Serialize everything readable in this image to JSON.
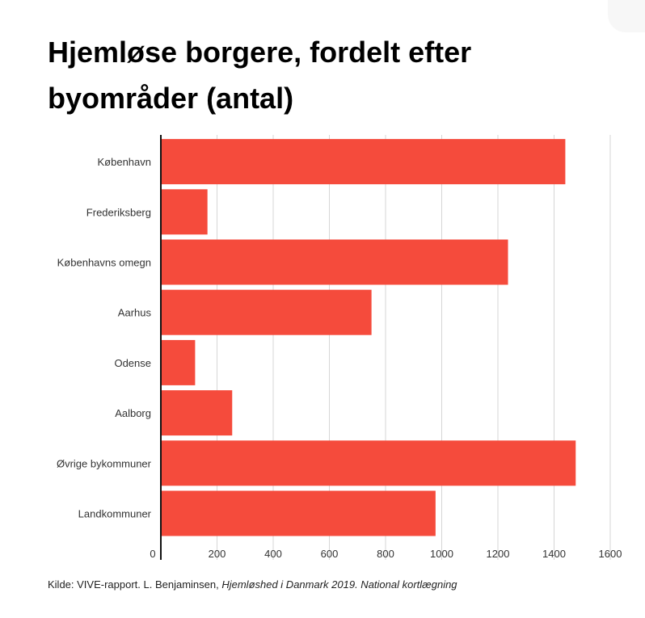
{
  "title": "Hjemløse borgere, fordelt efter byområder (antal)",
  "source": {
    "plain": "Kilde: VIVE-rapport. L. Benjaminsen, ",
    "italic": "Hjemløshed i Danmark 2019. National kortlægning"
  },
  "colors": {
    "bar": "#f54b3c",
    "grid": "#d6d6d6",
    "axis": "#111111"
  },
  "chart_data": {
    "type": "bar",
    "orientation": "horizontal",
    "title": "Hjemløse borgere, fordelt efter byområder (antal)",
    "categories": [
      "København",
      "Frederiksberg",
      "Københavns omegn",
      "Aarhus",
      "Odense",
      "Aalborg",
      "Øvrige bykommuner",
      "Landkommuner"
    ],
    "values": [
      1440,
      166,
      1236,
      750,
      122,
      254,
      1477,
      978
    ],
    "xlim": [
      0,
      1600
    ],
    "xticks": [
      0,
      200,
      400,
      600,
      800,
      1000,
      1200,
      1400,
      1600
    ],
    "xlabel": "",
    "ylabel": "",
    "grid": true,
    "legend": "none"
  }
}
